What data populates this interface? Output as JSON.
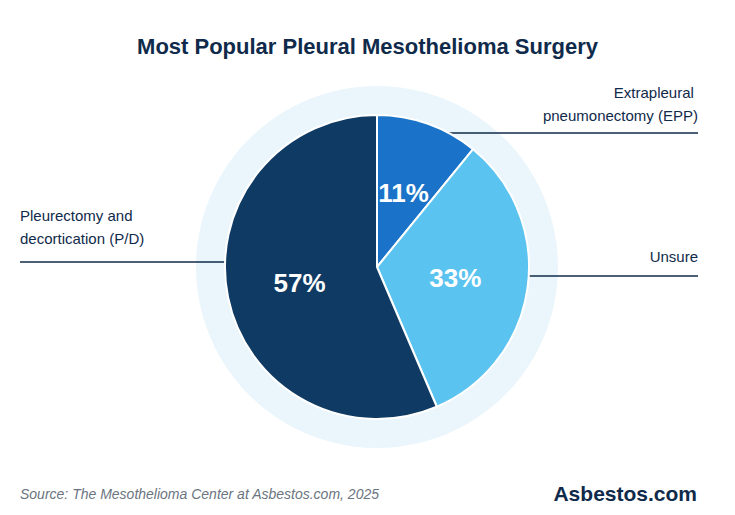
{
  "chart_data": {
    "type": "pie",
    "title": "Most Popular Pleural Mesothelioma Surgery",
    "categories": [
      "Extrapleural pneumonectomy (EPP)",
      "Unsure",
      "Pleurectomy and decortication (P/D)"
    ],
    "values": [
      11,
      33,
      57
    ],
    "value_labels": [
      "11%",
      "33%",
      "57%"
    ],
    "colors": [
      "#1a73c8",
      "#5bc3ef",
      "#0f3a63"
    ],
    "data_labels": true,
    "annotations": [
      "Source: The Mesothelioma Center at Asbestos.com, 2025",
      "Asbestos.com"
    ]
  }
}
